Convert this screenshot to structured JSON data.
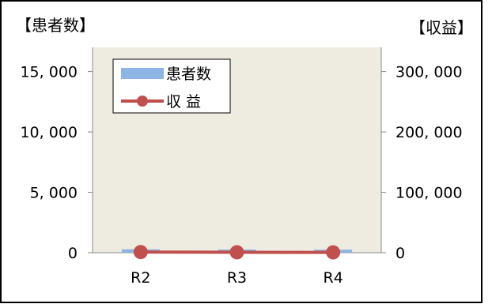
{
  "chart_data": {
    "type": "bar+line",
    "left_axis_title": "【患者数】",
    "right_axis_title": "【収益】",
    "categories": [
      "R2",
      "R3",
      "R4"
    ],
    "left_ticks": [
      "0",
      "5, 000",
      "10, 000",
      "15, 000"
    ],
    "left_tick_values": [
      0,
      5000,
      10000,
      15000
    ],
    "right_ticks": [
      "0",
      "100, 000",
      "200, 000",
      "300, 000"
    ],
    "right_tick_values": [
      0,
      100000,
      200000,
      300000
    ],
    "ylim_left": [
      0,
      17000
    ],
    "ylim_right": [
      0,
      340000
    ],
    "series": [
      {
        "name": "患者数",
        "kind": "bar",
        "axis": "left",
        "values": [
          280,
          260,
          250
        ],
        "color": "#8DB4E2"
      },
      {
        "name": "収 益",
        "kind": "line",
        "axis": "right",
        "values": [
          1000,
          700,
          500
        ],
        "color": "#C0504D"
      }
    ],
    "grid": false,
    "legend_position": "top-left",
    "plot_background": "#EEECE1"
  }
}
